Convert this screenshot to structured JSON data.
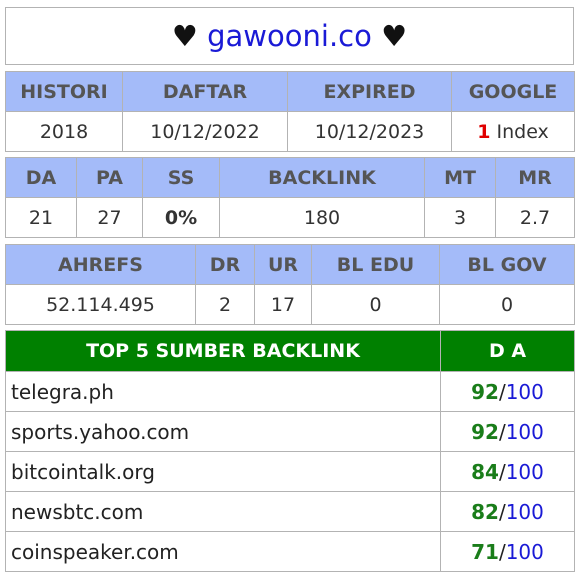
{
  "title": {
    "left_heart": "♥",
    "domain": "gawooni.co",
    "right_heart": "♥"
  },
  "history": {
    "headers": [
      "HISTORI",
      "DAFTAR",
      "EXPIRED",
      "GOOGLE"
    ],
    "histori": "2018",
    "daftar": "10/12/2022",
    "expired": "10/12/2023",
    "google_count": "1",
    "google_label": "Index"
  },
  "metrics": {
    "headers": [
      "DA",
      "PA",
      "SS",
      "BACKLINK",
      "MT",
      "MR"
    ],
    "values": [
      "21",
      "27",
      "0%",
      "180",
      "3",
      "2.7"
    ]
  },
  "ahrefs": {
    "headers": [
      "AHREFS",
      "DR",
      "UR",
      "BL EDU",
      "BL GOV"
    ],
    "values": [
      "52.114.495",
      "2",
      "17",
      "0",
      "0"
    ]
  },
  "top_backlinks": {
    "header_source": "TOP 5 SUMBER BACKLINK",
    "header_da": "D A",
    "slash": "/",
    "max": "100",
    "rows": [
      {
        "site": "telegra.ph",
        "da": "92"
      },
      {
        "site": "sports.yahoo.com",
        "da": "92"
      },
      {
        "site": "bitcointalk.org",
        "da": "84"
      },
      {
        "site": "newsbtc.com",
        "da": "82"
      },
      {
        "site": "coinspeaker.com",
        "da": "71"
      }
    ]
  },
  "colors": {
    "header_bg": "#a4bbf9",
    "top_header_bg": "#008000",
    "domain": "#1a1ad6",
    "da_value": "#1a7d1a",
    "google_count": "#e00000",
    "ss_value": "#66cc33"
  }
}
